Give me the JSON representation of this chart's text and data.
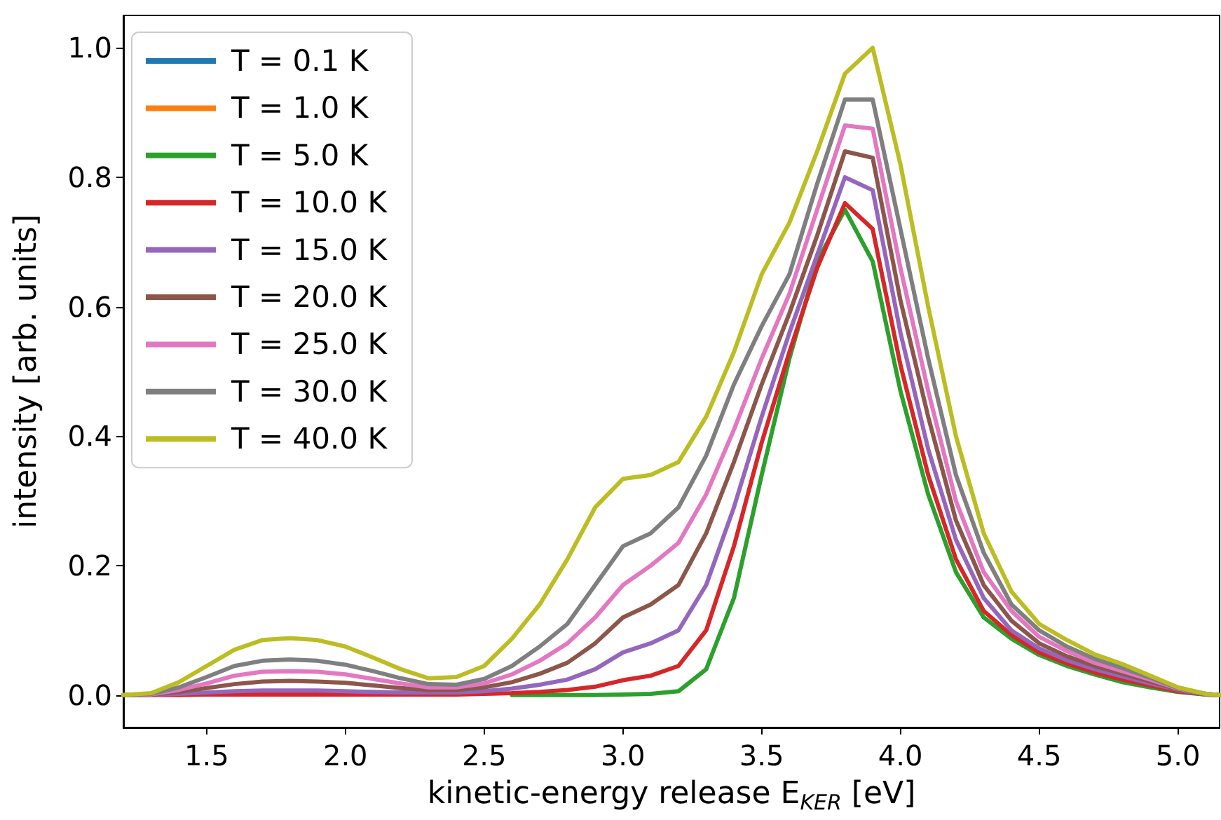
{
  "chart_data": {
    "type": "line",
    "xlabel": "kinetic-energy release E$_{KER}$ [eV]",
    "ylabel": "intensity [arb. units]",
    "x": [
      1.2,
      1.3,
      1.4,
      1.5,
      1.6,
      1.7,
      1.8,
      1.9,
      2.0,
      2.1,
      2.2,
      2.3,
      2.4,
      2.5,
      2.6,
      2.7,
      2.8,
      2.9,
      3.0,
      3.1,
      3.2,
      3.3,
      3.4,
      3.5,
      3.6,
      3.7,
      3.8,
      3.9,
      4.0,
      4.1,
      4.2,
      4.3,
      4.4,
      4.5,
      4.6,
      4.7,
      4.8,
      4.9,
      5.0,
      5.1,
      5.15
    ],
    "series": [
      {
        "name": "T = 0.1 K",
        "color": "#1f77b4",
        "values": [
          null,
          null,
          null,
          null,
          null,
          null,
          null,
          null,
          null,
          null,
          null,
          null,
          null,
          null,
          null,
          null,
          null,
          null,
          null,
          null,
          null,
          null,
          null,
          null,
          null,
          null,
          null,
          null,
          null,
          null,
          null,
          null,
          null,
          null,
          null,
          null,
          null,
          null,
          null,
          null,
          null
        ]
      },
      {
        "name": "T = 1.0 K",
        "color": "#ff7f0e",
        "values": [
          null,
          null,
          null,
          null,
          null,
          null,
          null,
          null,
          null,
          null,
          null,
          null,
          null,
          null,
          null,
          null,
          null,
          null,
          null,
          null,
          null,
          null,
          null,
          null,
          null,
          null,
          null,
          null,
          null,
          null,
          null,
          null,
          null,
          null,
          null,
          null,
          null,
          null,
          null,
          null,
          null
        ]
      },
      {
        "name": "T = 5.0 K",
        "color": "#2ca02c",
        "values": [
          null,
          null,
          null,
          null,
          null,
          null,
          null,
          null,
          null,
          null,
          null,
          null,
          null,
          null,
          0,
          0,
          0,
          0,
          0.001,
          0.002,
          0.006,
          0.04,
          0.15,
          0.34,
          0.52,
          0.67,
          0.75,
          0.67,
          0.47,
          0.31,
          0.19,
          0.12,
          0.087,
          0.062,
          0.045,
          0.032,
          0.02,
          0.012,
          0.005,
          0.001,
          0
        ]
      },
      {
        "name": "T = 10.0 K",
        "color": "#d62728",
        "values": [
          0,
          0,
          0,
          0.001,
          0.001,
          0.001,
          0.001,
          0.001,
          0.001,
          0.001,
          0.001,
          0.001,
          0.001,
          0.002,
          0.003,
          0.005,
          0.008,
          0.013,
          0.023,
          0.03,
          0.045,
          0.1,
          0.23,
          0.39,
          0.53,
          0.66,
          0.76,
          0.72,
          0.51,
          0.34,
          0.21,
          0.13,
          0.093,
          0.066,
          0.049,
          0.035,
          0.024,
          0.015,
          0.006,
          0.001,
          0
        ]
      },
      {
        "name": "T = 15.0 K",
        "color": "#9467bd",
        "values": [
          0,
          0,
          0.002,
          0.004,
          0.006,
          0.007,
          0.007,
          0.007,
          0.006,
          0.005,
          0.004,
          0.004,
          0.004,
          0.006,
          0.01,
          0.016,
          0.024,
          0.04,
          0.066,
          0.08,
          0.1,
          0.17,
          0.29,
          0.43,
          0.56,
          0.68,
          0.8,
          0.78,
          0.56,
          0.38,
          0.24,
          0.15,
          0.1,
          0.072,
          0.054,
          0.04,
          0.029,
          0.018,
          0.008,
          0.001,
          0
        ]
      },
      {
        "name": "T = 20.0 K",
        "color": "#8c564b",
        "values": [
          0,
          0.001,
          0.005,
          0.011,
          0.017,
          0.021,
          0.022,
          0.021,
          0.019,
          0.015,
          0.011,
          0.008,
          0.008,
          0.012,
          0.02,
          0.033,
          0.05,
          0.08,
          0.12,
          0.14,
          0.17,
          0.25,
          0.36,
          0.48,
          0.59,
          0.71,
          0.84,
          0.83,
          0.61,
          0.43,
          0.27,
          0.17,
          0.115,
          0.08,
          0.06,
          0.045,
          0.033,
          0.021,
          0.009,
          0.002,
          0
        ]
      },
      {
        "name": "T = 25.0 K",
        "color": "#e377c2",
        "values": [
          0,
          0.001,
          0.008,
          0.018,
          0.03,
          0.036,
          0.037,
          0.036,
          0.032,
          0.025,
          0.018,
          0.012,
          0.012,
          0.018,
          0.032,
          0.053,
          0.08,
          0.12,
          0.17,
          0.2,
          0.235,
          0.31,
          0.41,
          0.52,
          0.62,
          0.75,
          0.88,
          0.875,
          0.66,
          0.47,
          0.3,
          0.19,
          0.13,
          0.09,
          0.068,
          0.05,
          0.037,
          0.024,
          0.01,
          0.002,
          0
        ]
      },
      {
        "name": "T = 30.0 K",
        "color": "#7f7f7f",
        "values": [
          0,
          0.002,
          0.012,
          0.028,
          0.045,
          0.053,
          0.055,
          0.053,
          0.047,
          0.037,
          0.026,
          0.017,
          0.016,
          0.025,
          0.045,
          0.075,
          0.11,
          0.17,
          0.23,
          0.25,
          0.29,
          0.37,
          0.48,
          0.57,
          0.65,
          0.79,
          0.92,
          0.92,
          0.72,
          0.52,
          0.34,
          0.22,
          0.14,
          0.1,
          0.075,
          0.056,
          0.042,
          0.027,
          0.011,
          0.002,
          0
        ]
      },
      {
        "name": "T = 40.0 K",
        "color": "#bcbd22",
        "values": [
          0,
          0.003,
          0.02,
          0.045,
          0.07,
          0.085,
          0.088,
          0.085,
          0.075,
          0.058,
          0.04,
          0.026,
          0.028,
          0.045,
          0.087,
          0.14,
          0.21,
          0.29,
          0.334,
          0.34,
          0.36,
          0.43,
          0.53,
          0.65,
          0.73,
          0.84,
          0.96,
          1.0,
          0.82,
          0.6,
          0.4,
          0.25,
          0.16,
          0.11,
          0.085,
          0.063,
          0.048,
          0.03,
          0.012,
          0.002,
          0
        ]
      }
    ],
    "xlim": [
      1.2,
      5.15
    ],
    "xticks": [
      1.5,
      {
        "value": 2,
        "label": "2.0"
      },
      2.5,
      {
        "value": 3,
        "label": "3.0"
      },
      3.5,
      {
        "value": 4,
        "label": "4.0"
      },
      4.5,
      {
        "value": 5,
        "label": "5.0"
      }
    ],
    "ylim": [
      -0.05,
      1.05
    ],
    "yticks": [
      {
        "value": 0,
        "label": "0.0"
      },
      0.2,
      0.4,
      0.6,
      0.8,
      {
        "value": 1,
        "label": "1.0"
      }
    ],
    "grid": false,
    "legend": "top left",
    "marker": "none",
    "line_style": "solid"
  }
}
